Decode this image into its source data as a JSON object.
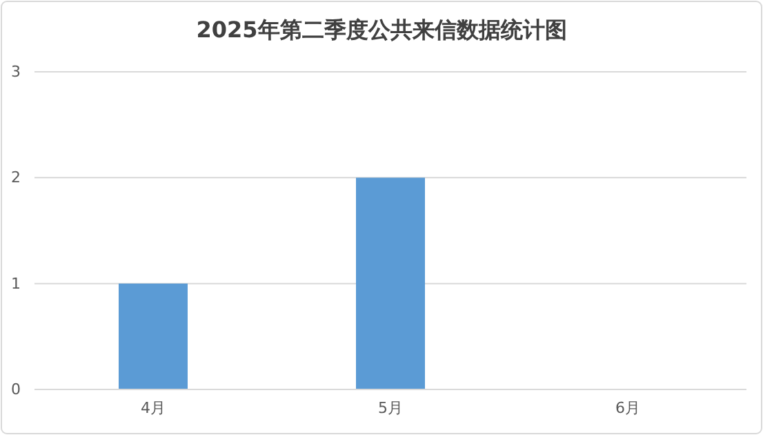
{
  "chart_data": {
    "type": "bar",
    "title": "2025年第二季度公共来信数据统计图",
    "categories": [
      "4月",
      "5月",
      "6月"
    ],
    "values": [
      1,
      2,
      0
    ],
    "color": "#5b9bd5",
    "ylim": [
      0,
      3
    ],
    "yticks": [
      0,
      1,
      2,
      3
    ],
    "grid": "y"
  }
}
